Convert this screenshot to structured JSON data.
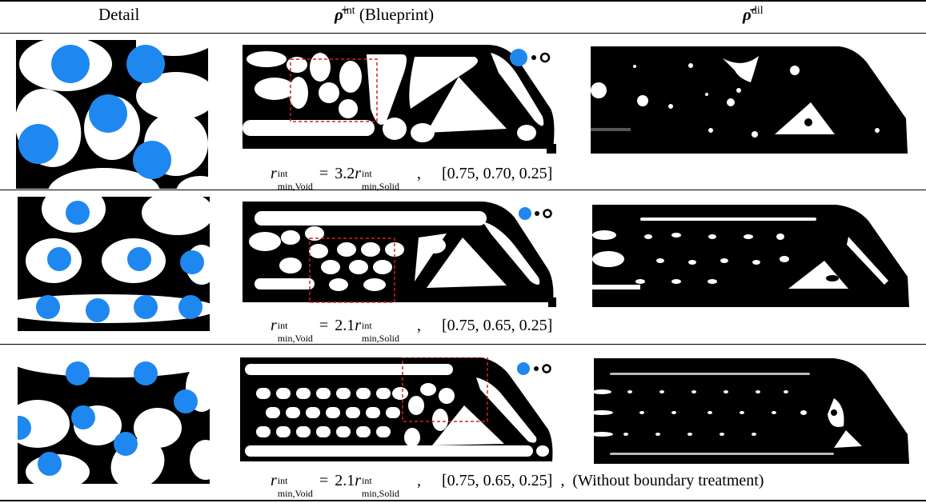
{
  "header": {
    "col1": "Detail",
    "col2_sym": "ρ̄",
    "col2_sup": "int",
    "col2_label": "(Blueprint)",
    "col3_sym": "ρ̄",
    "col3_sup": "dil"
  },
  "rows": [
    {
      "r_sym": "r",
      "r_sup": "int",
      "void_sub": "min,Void",
      "equals": "=",
      "factor": "3.2",
      "solid_sub": "min,Solid",
      "comma": ",",
      "params": "[0.75, 0.70, 0.25]",
      "note": ""
    },
    {
      "r_sym": "r",
      "r_sup": "int",
      "void_sub": "min,Void",
      "equals": "=",
      "factor": "2.1",
      "solid_sub": "min,Solid",
      "comma": ",",
      "params": "[0.75, 0.65, 0.25]",
      "note": ""
    },
    {
      "r_sym": "r",
      "r_sup": "int",
      "void_sub": "min,Void",
      "equals": "=",
      "factor": "2.1",
      "solid_sub": "min,Solid",
      "comma": ",",
      "params": "[0.75, 0.65, 0.25]",
      "comma2": ",",
      "note": "(Without boundary treatment)"
    }
  ],
  "colors": {
    "marker_blue": "#1e88f0",
    "box_red": "#d62020",
    "solid": "#000000",
    "void": "#ffffff"
  }
}
